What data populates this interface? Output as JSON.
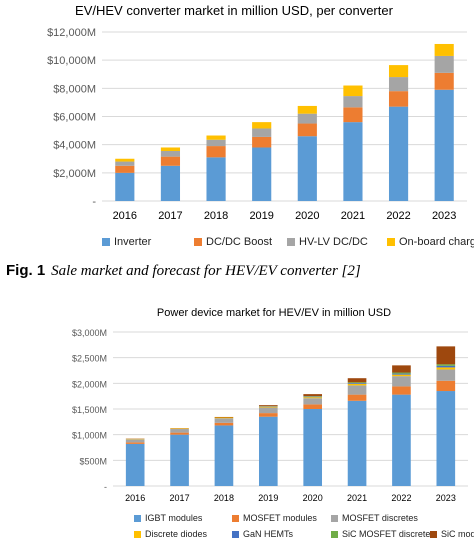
{
  "figure1": {
    "caption_label": "Fig. 1",
    "caption_text": "Sale market and forecast for HEV/EV converter [2]"
  },
  "colors": {
    "blue": "#5b9bd5",
    "orange": "#ed7d31",
    "gray": "#a5a5a5",
    "yellow": "#ffc000",
    "green": "#70ad47",
    "darkred": "#9e480e",
    "gridline": "#d9d9d9",
    "text": "#595959"
  },
  "chart_data": [
    {
      "type": "bar",
      "stacked": true,
      "title": "EV/HEV converter market in million USD, per converter",
      "categories": [
        "2016",
        "2017",
        "2018",
        "2019",
        "2020",
        "2021",
        "2022",
        "2023"
      ],
      "y_ticks": [
        "-",
        "$2,000M",
        "$4,000M",
        "$6,000M",
        "$8,000M",
        "$10,000M",
        "$12,000M"
      ],
      "ylim": [
        0,
        12000
      ],
      "grid": true,
      "legend_position": "bottom",
      "series": [
        {
          "name": "Inverter",
          "color": "#5b9bd5",
          "values": [
            2000,
            2500,
            3100,
            3800,
            4600,
            5600,
            6700,
            7900
          ]
        },
        {
          "name": "DC/DC Boost",
          "color": "#ed7d31",
          "values": [
            500,
            650,
            800,
            750,
            900,
            1050,
            1100,
            1200
          ]
        },
        {
          "name": "HV-LV DC/DC",
          "color": "#a5a5a5",
          "values": [
            300,
            400,
            450,
            600,
            700,
            800,
            1000,
            1200
          ]
        },
        {
          "name": "On-board charger",
          "color": "#ffc000",
          "values": [
            200,
            250,
            300,
            450,
            550,
            750,
            850,
            850
          ]
        }
      ]
    },
    {
      "type": "bar",
      "stacked": true,
      "title": "Power device market for HEV/EV in million USD",
      "categories": [
        "2016",
        "2017",
        "2018",
        "2019",
        "2020",
        "2021",
        "2022",
        "2023"
      ],
      "y_ticks": [
        "-",
        "$500M",
        "$1,000M",
        "$1,500M",
        "$2,000M",
        "$2,500M",
        "$3,000M"
      ],
      "ylim": [
        0,
        3000
      ],
      "grid": true,
      "legend_position": "bottom",
      "series": [
        {
          "name": "IGBT modules",
          "color": "#5b9bd5",
          "values": [
            820,
            1000,
            1180,
            1350,
            1500,
            1660,
            1780,
            1850
          ]
        },
        {
          "name": "MOSFET modules",
          "color": "#ed7d31",
          "values": [
            30,
            40,
            50,
            70,
            90,
            120,
            160,
            200
          ]
        },
        {
          "name": "MOSFET discretes",
          "color": "#a5a5a5",
          "values": [
            60,
            70,
            90,
            110,
            120,
            180,
            200,
            220
          ]
        },
        {
          "name": "Discrete diodes",
          "color": "#ffc000",
          "values": [
            10,
            10,
            15,
            15,
            20,
            30,
            30,
            40
          ]
        },
        {
          "name": "GaN HEMTs",
          "color": "#4472c4",
          "values": [
            0,
            0,
            0,
            5,
            10,
            15,
            20,
            30
          ]
        },
        {
          "name": "SiC MOSFET discretes",
          "color": "#70ad47",
          "values": [
            0,
            0,
            0,
            5,
            10,
            15,
            20,
            30
          ]
        },
        {
          "name": "SiC modules",
          "color": "#9e480e",
          "values": [
            5,
            5,
            10,
            20,
            40,
            80,
            140,
            350
          ]
        }
      ]
    }
  ]
}
